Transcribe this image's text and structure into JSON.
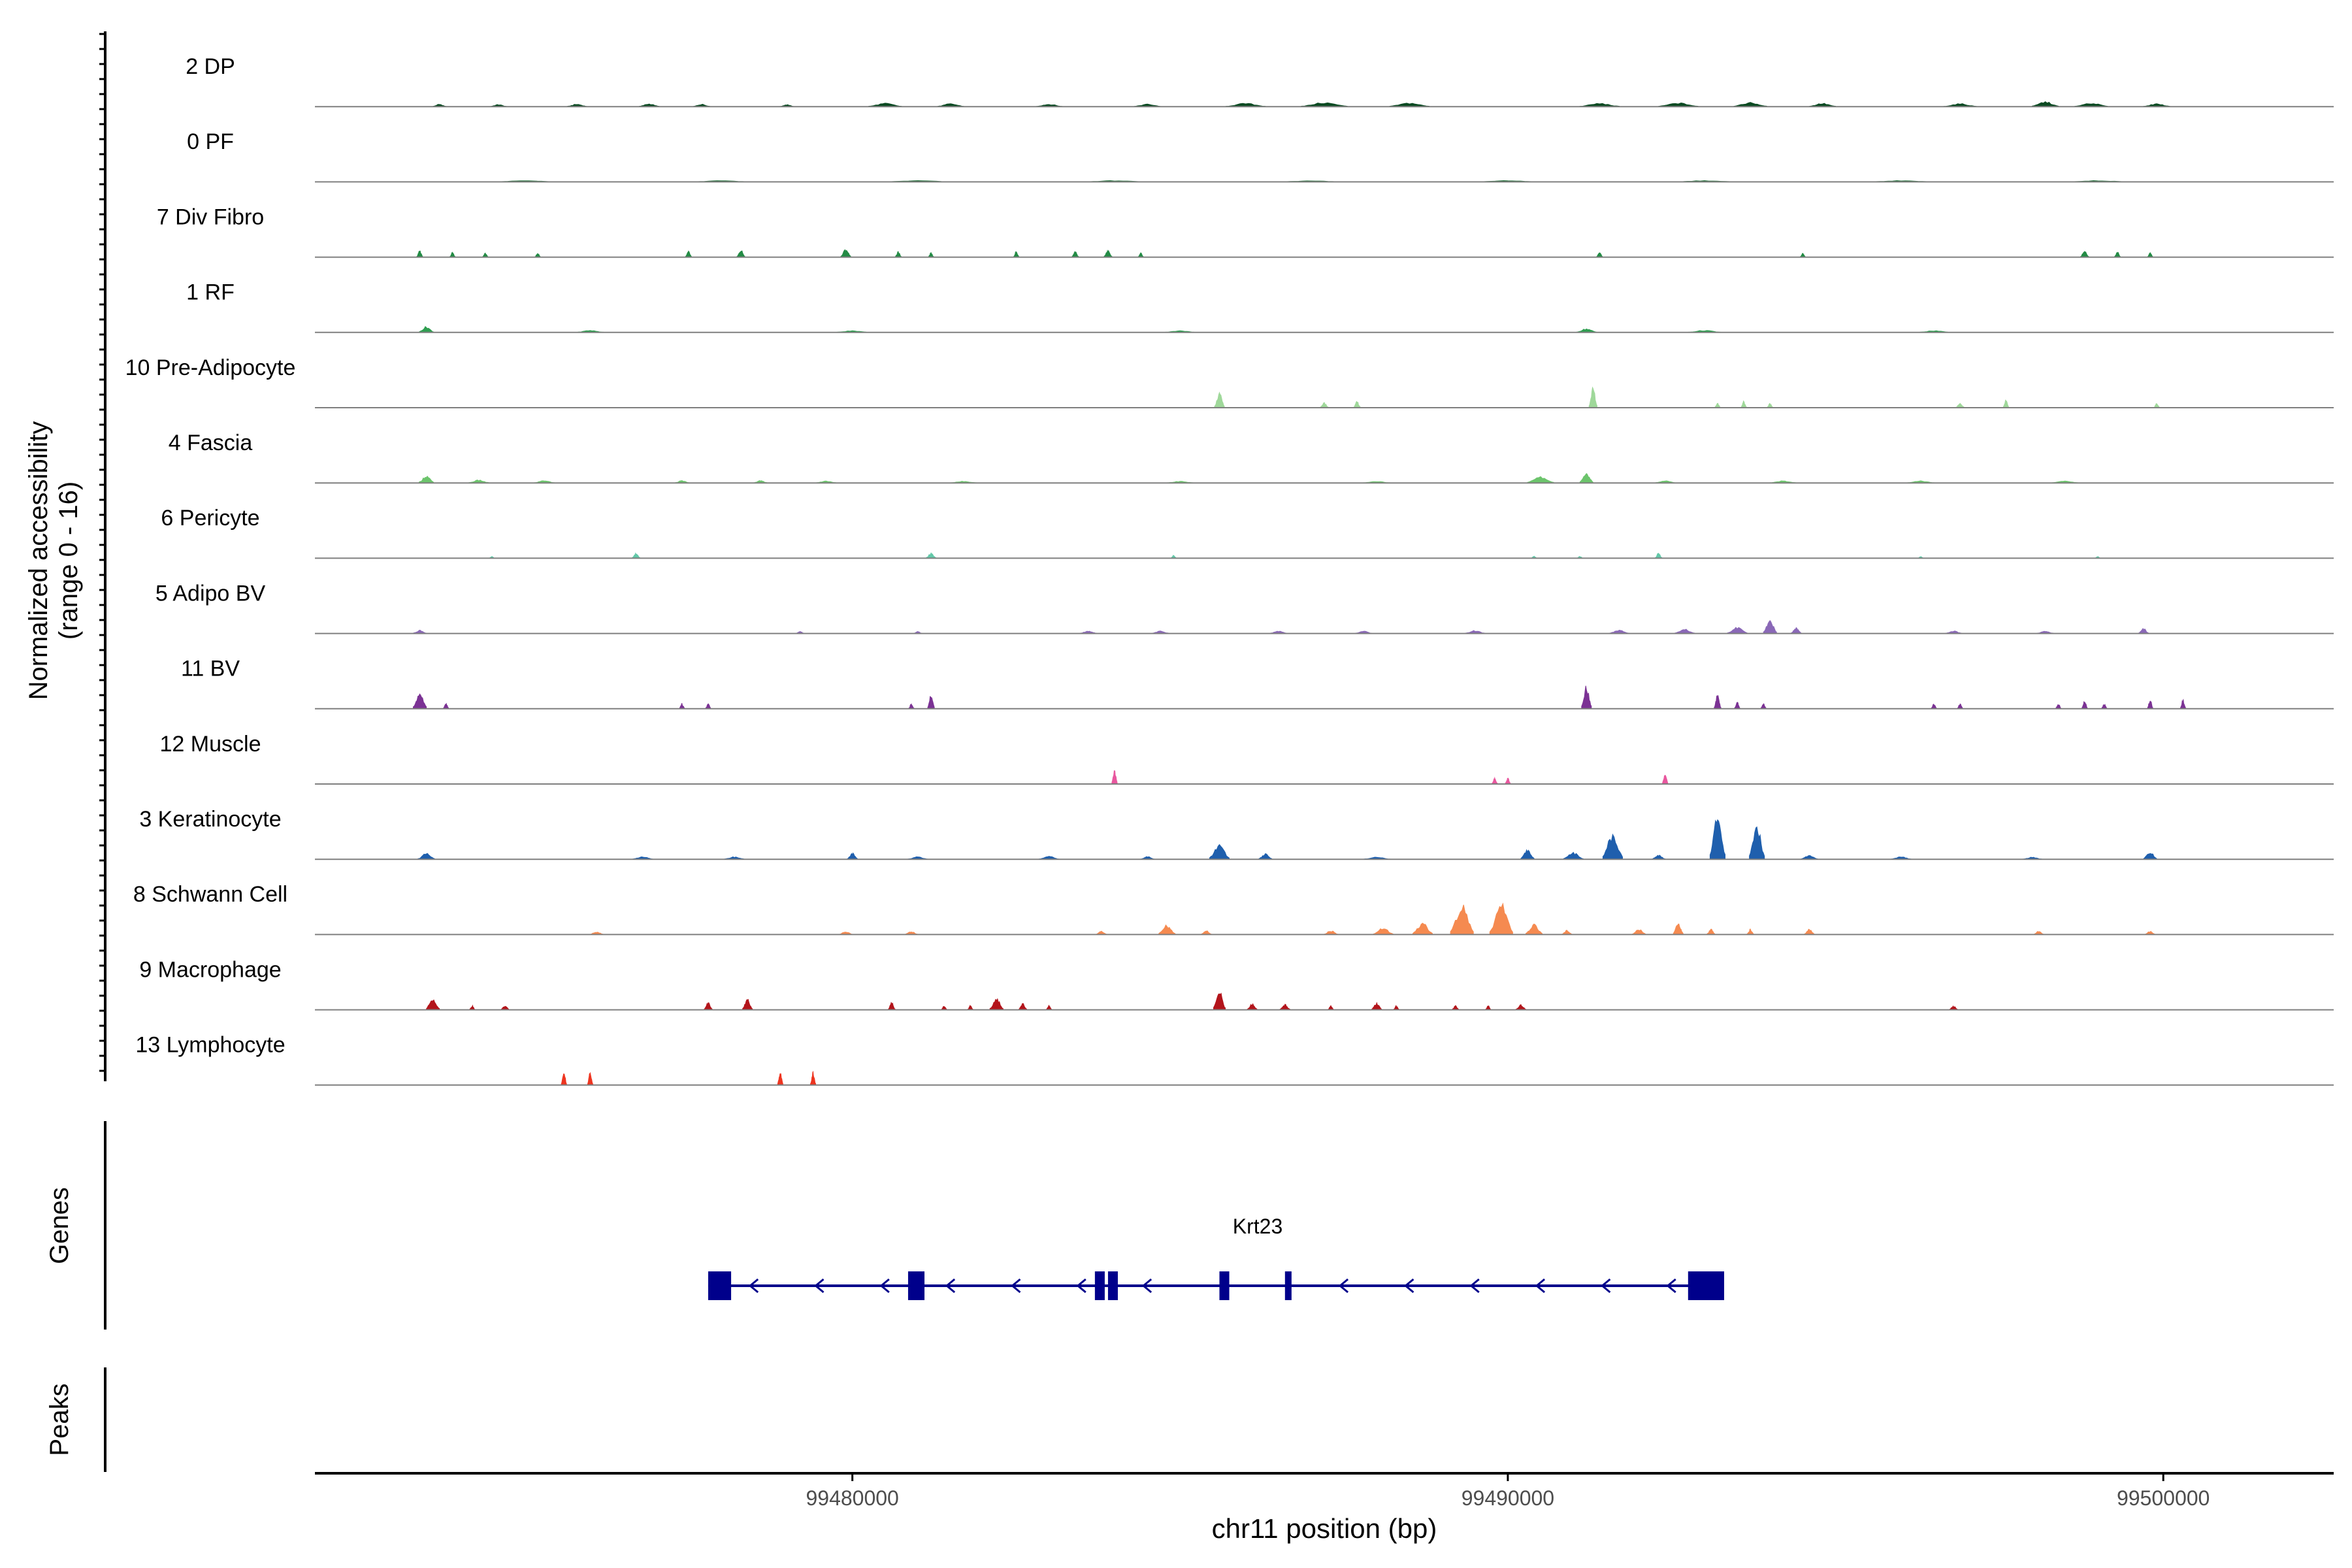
{
  "chart_data": {
    "type": "coverage-track",
    "y_axis": {
      "label_line1": "Normalized accessibility",
      "label_line2": "(range 0 - 16)",
      "range": [
        0,
        16
      ]
    },
    "x_axis": {
      "label": "chr11 position (bp)",
      "range": [
        99471800,
        99502600
      ],
      "ticks": [
        99480000,
        99490000,
        99500000
      ],
      "tick_labels": [
        "99480000",
        "99490000",
        "99500000"
      ]
    },
    "tracks": [
      {
        "name": "2 DP",
        "color": "#0b4a22",
        "peaks": [
          [
            99473700,
            0.6,
            200
          ],
          [
            99474600,
            0.5,
            250
          ],
          [
            99475800,
            0.6,
            300
          ],
          [
            99476900,
            0.7,
            300
          ],
          [
            99477700,
            0.6,
            250
          ],
          [
            99479000,
            0.5,
            200
          ],
          [
            99480500,
            0.8,
            500
          ],
          [
            99481500,
            0.7,
            400
          ],
          [
            99483000,
            0.6,
            400
          ],
          [
            99484500,
            0.6,
            400
          ],
          [
            99486000,
            0.8,
            600
          ],
          [
            99487200,
            1.0,
            700
          ],
          [
            99488500,
            0.9,
            600
          ],
          [
            99491400,
            0.8,
            600
          ],
          [
            99492600,
            0.9,
            600
          ],
          [
            99493700,
            1.0,
            500
          ],
          [
            99494800,
            0.8,
            400
          ],
          [
            99496900,
            0.7,
            500
          ],
          [
            99498200,
            1.2,
            400
          ],
          [
            99498900,
            0.9,
            500
          ],
          [
            99499900,
            0.7,
            400
          ]
        ]
      },
      {
        "name": "0 PF",
        "color": "#1b6b33",
        "peaks": [
          [
            99475000,
            0.3,
            900
          ],
          [
            99478000,
            0.3,
            900
          ],
          [
            99481000,
            0.3,
            1000
          ],
          [
            99484000,
            0.3,
            900
          ],
          [
            99487000,
            0.3,
            900
          ],
          [
            99490000,
            0.3,
            900
          ],
          [
            99493000,
            0.3,
            900
          ],
          [
            99496000,
            0.3,
            900
          ],
          [
            99499000,
            0.3,
            900
          ]
        ]
      },
      {
        "name": "7 Div Fibro",
        "color": "#238b45",
        "peaks": [
          [
            99473400,
            1.6,
            90
          ],
          [
            99473900,
            1.2,
            80
          ],
          [
            99474400,
            1.0,
            60
          ],
          [
            99475200,
            1.0,
            80
          ],
          [
            99477500,
            1.4,
            90
          ],
          [
            99478300,
            1.7,
            120
          ],
          [
            99479900,
            2.0,
            150
          ],
          [
            99480700,
            1.3,
            90
          ],
          [
            99481200,
            1.1,
            60
          ],
          [
            99482500,
            1.4,
            60
          ],
          [
            99483400,
            1.3,
            100
          ],
          [
            99483900,
            1.6,
            120
          ],
          [
            99484400,
            1.0,
            60
          ],
          [
            99491400,
            1.2,
            90
          ],
          [
            99494500,
            0.9,
            60
          ],
          [
            99498800,
            1.6,
            120
          ],
          [
            99499300,
            1.3,
            90
          ],
          [
            99499800,
            1.1,
            60
          ]
        ]
      },
      {
        "name": "1 RF",
        "color": "#2e9e50",
        "peaks": [
          [
            99473500,
            1.4,
            220
          ],
          [
            99476000,
            0.5,
            400
          ],
          [
            99480000,
            0.4,
            500
          ],
          [
            99485000,
            0.4,
            500
          ],
          [
            99491200,
            0.9,
            300
          ],
          [
            99493000,
            0.5,
            500
          ],
          [
            99496500,
            0.4,
            500
          ]
        ]
      },
      {
        "name": "10 Pre-Adipocyte",
        "color": "#9fd89a",
        "peaks": [
          [
            99485600,
            3.5,
            150
          ],
          [
            99487200,
            1.2,
            120
          ],
          [
            99487700,
            1.5,
            100
          ],
          [
            99491300,
            5.0,
            120
          ],
          [
            99493200,
            1.2,
            80
          ],
          [
            99493600,
            1.6,
            80
          ],
          [
            99494000,
            1.2,
            80
          ],
          [
            99496900,
            1.1,
            120
          ],
          [
            99497600,
            1.9,
            70
          ],
          [
            99499900,
            1.1,
            80
          ]
        ]
      },
      {
        "name": "4 Fascia",
        "color": "#6cc46c",
        "peaks": [
          [
            99473500,
            1.8,
            220
          ],
          [
            99474300,
            0.7,
            300
          ],
          [
            99475300,
            0.6,
            300
          ],
          [
            99477400,
            0.6,
            200
          ],
          [
            99478600,
            0.6,
            200
          ],
          [
            99479600,
            0.5,
            300
          ],
          [
            99481700,
            0.4,
            400
          ],
          [
            99485000,
            0.4,
            400
          ],
          [
            99488000,
            0.4,
            400
          ],
          [
            99490500,
            1.5,
            400
          ],
          [
            99491200,
            2.3,
            200
          ],
          [
            99492400,
            0.6,
            300
          ],
          [
            99494200,
            0.5,
            400
          ],
          [
            99496300,
            0.5,
            400
          ],
          [
            99498500,
            0.5,
            400
          ]
        ]
      },
      {
        "name": "6 Pericyte",
        "color": "#62c8a8",
        "peaks": [
          [
            99474500,
            0.4,
            80
          ],
          [
            99476700,
            1.2,
            120
          ],
          [
            99481200,
            1.2,
            150
          ],
          [
            99484900,
            0.7,
            80
          ],
          [
            99490400,
            0.5,
            80
          ],
          [
            99491100,
            0.5,
            80
          ],
          [
            99492300,
            1.3,
            100
          ],
          [
            99496300,
            0.4,
            80
          ],
          [
            99499000,
            0.4,
            80
          ]
        ]
      },
      {
        "name": "5 Adipo BV",
        "color": "#8a68b7",
        "peaks": [
          [
            99473400,
            0.8,
            200
          ],
          [
            99479200,
            0.5,
            120
          ],
          [
            99481000,
            0.5,
            120
          ],
          [
            99483600,
            0.6,
            250
          ],
          [
            99484700,
            0.6,
            250
          ],
          [
            99486500,
            0.6,
            250
          ],
          [
            99487800,
            0.6,
            250
          ],
          [
            99489500,
            0.7,
            300
          ],
          [
            99491700,
            0.8,
            300
          ],
          [
            99492700,
            1.0,
            300
          ],
          [
            99493500,
            1.5,
            300
          ],
          [
            99494000,
            3.4,
            200
          ],
          [
            99494400,
            1.4,
            150
          ],
          [
            99496800,
            0.6,
            250
          ],
          [
            99498200,
            0.6,
            250
          ],
          [
            99499700,
            1.2,
            150
          ]
        ]
      },
      {
        "name": "11 BV",
        "color": "#7b3294",
        "peaks": [
          [
            99473400,
            4.0,
            200
          ],
          [
            99473800,
            1.3,
            80
          ],
          [
            99477400,
            1.2,
            60
          ],
          [
            99477800,
            1.2,
            60
          ],
          [
            99480900,
            1.2,
            60
          ],
          [
            99481200,
            3.5,
            100
          ],
          [
            99491200,
            5.6,
            150
          ],
          [
            99493200,
            3.4,
            100
          ],
          [
            99493500,
            1.6,
            60
          ],
          [
            99493900,
            1.2,
            60
          ],
          [
            99496500,
            1.2,
            60
          ],
          [
            99496900,
            1.2,
            60
          ],
          [
            99498400,
            1.2,
            60
          ],
          [
            99498800,
            2.2,
            60
          ],
          [
            99499100,
            1.2,
            60
          ],
          [
            99499800,
            2.3,
            60
          ],
          [
            99500300,
            2.2,
            60
          ]
        ]
      },
      {
        "name": "12 Muscle",
        "color": "#e8579e",
        "peaks": [
          [
            99484000,
            3.5,
            80
          ],
          [
            99489800,
            1.4,
            60
          ],
          [
            99490000,
            1.4,
            60
          ],
          [
            99492400,
            3.0,
            80
          ]
        ]
      },
      {
        "name": "3 Keratinocyte",
        "color": "#1f5fad",
        "peaks": [
          [
            99473500,
            1.4,
            250
          ],
          [
            99476800,
            0.6,
            300
          ],
          [
            99478200,
            0.6,
            300
          ],
          [
            99480000,
            1.5,
            150
          ],
          [
            99481000,
            0.6,
            300
          ],
          [
            99483000,
            0.7,
            300
          ],
          [
            99484500,
            0.7,
            200
          ],
          [
            99485600,
            3.4,
            300
          ],
          [
            99486300,
            1.3,
            200
          ],
          [
            99488000,
            0.5,
            400
          ],
          [
            99490300,
            2.2,
            200
          ],
          [
            99491000,
            1.6,
            300
          ],
          [
            99491600,
            6.3,
            300
          ],
          [
            99492300,
            1.0,
            200
          ],
          [
            99493200,
            10.6,
            230
          ],
          [
            99493800,
            8.5,
            230
          ],
          [
            99494600,
            1.0,
            250
          ],
          [
            99496000,
            0.6,
            300
          ],
          [
            99498000,
            0.5,
            300
          ],
          [
            99499800,
            1.8,
            200
          ]
        ]
      },
      {
        "name": "8 Schwann Cell",
        "color": "#f58a50",
        "peaks": [
          [
            99476100,
            0.7,
            200
          ],
          [
            99479900,
            0.7,
            200
          ],
          [
            99480900,
            0.7,
            200
          ],
          [
            99483800,
            0.9,
            150
          ],
          [
            99484800,
            2.3,
            250
          ],
          [
            99485400,
            1.0,
            150
          ],
          [
            99487300,
            1.0,
            200
          ],
          [
            99488100,
            1.6,
            300
          ],
          [
            99488700,
            2.8,
            300
          ],
          [
            99489300,
            7.4,
            350
          ],
          [
            99489900,
            7.4,
            350
          ],
          [
            99490400,
            2.5,
            250
          ],
          [
            99490900,
            1.0,
            150
          ],
          [
            99492000,
            1.3,
            200
          ],
          [
            99492600,
            2.8,
            150
          ],
          [
            99493100,
            1.3,
            120
          ],
          [
            99493700,
            1.3,
            100
          ],
          [
            99494600,
            1.3,
            150
          ],
          [
            99498100,
            0.8,
            150
          ],
          [
            99499800,
            0.8,
            150
          ]
        ]
      },
      {
        "name": "9 Macrophage",
        "color": "#b3141b",
        "peaks": [
          [
            99473600,
            2.9,
            200
          ],
          [
            99474200,
            1.0,
            80
          ],
          [
            99474700,
            1.0,
            120
          ],
          [
            99477800,
            1.8,
            120
          ],
          [
            99478400,
            2.5,
            150
          ],
          [
            99480600,
            1.8,
            100
          ],
          [
            99481400,
            1.0,
            80
          ],
          [
            99481800,
            1.0,
            80
          ],
          [
            99482200,
            2.8,
            200
          ],
          [
            99482600,
            1.5,
            120
          ],
          [
            99483000,
            1.0,
            80
          ],
          [
            99485600,
            4.5,
            180
          ],
          [
            99486100,
            1.5,
            150
          ],
          [
            99486600,
            1.3,
            150
          ],
          [
            99487300,
            1.0,
            80
          ],
          [
            99488000,
            1.6,
            150
          ],
          [
            99488300,
            1.0,
            80
          ],
          [
            99489200,
            1.0,
            100
          ],
          [
            99489700,
            1.0,
            80
          ],
          [
            99490200,
            1.2,
            150
          ],
          [
            99496800,
            1.0,
            120
          ]
        ]
      },
      {
        "name": "13 Lymphocyte",
        "color": "#ee3520",
        "peaks": [
          [
            99475600,
            3.2,
            70
          ],
          [
            99476000,
            3.2,
            70
          ],
          [
            99478900,
            3.2,
            70
          ],
          [
            99479400,
            3.2,
            70
          ]
        ]
      }
    ],
    "genes_label": "Genes",
    "peaks_label": "Peaks",
    "gene": {
      "name": "Krt23",
      "start": 99477800,
      "end": 99493300,
      "strand": "-",
      "exons": [
        [
          99477800,
          99478150
        ],
        [
          99480850,
          99481100
        ],
        [
          99483700,
          99483850
        ],
        [
          99483900,
          99484050
        ],
        [
          99485600,
          99485750
        ],
        [
          99486600,
          99486700
        ],
        [
          99492750,
          99493300
        ]
      ]
    }
  }
}
